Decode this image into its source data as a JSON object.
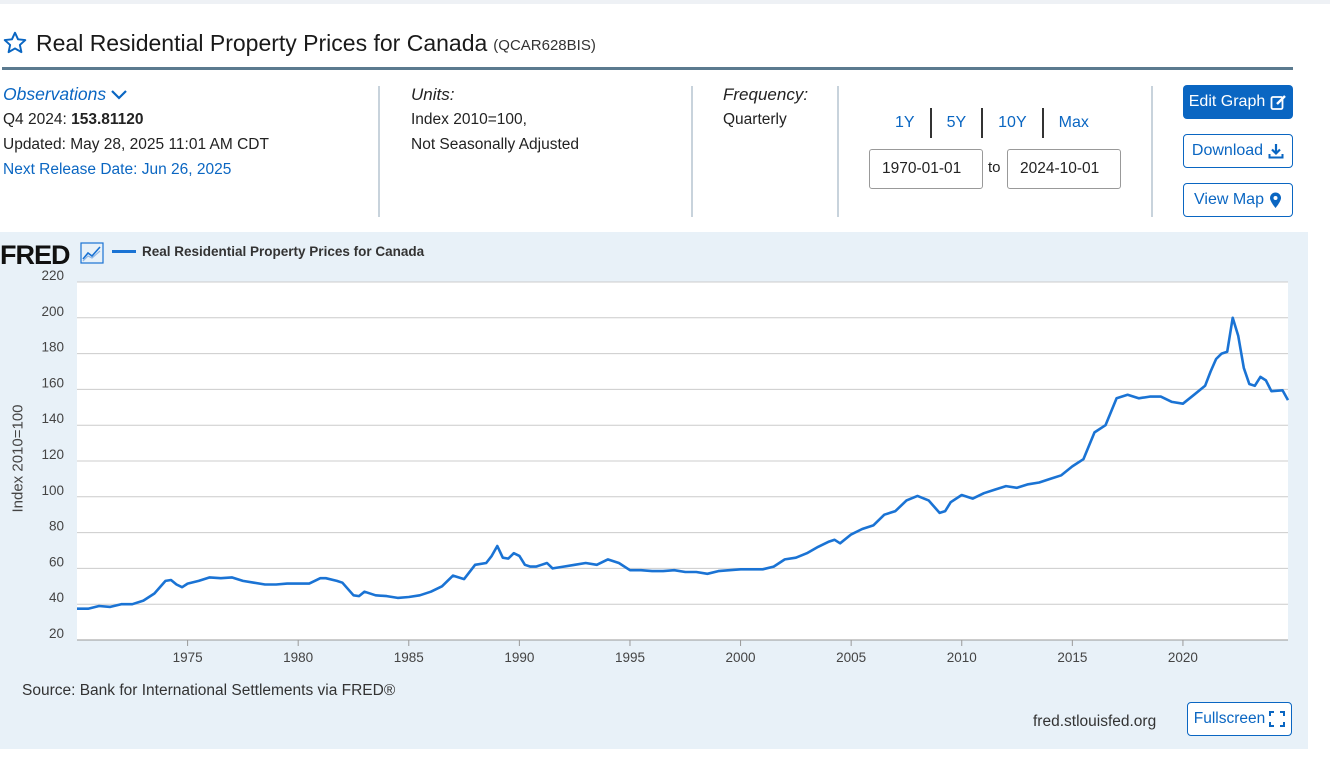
{
  "header": {
    "title": "Real Residential Property Prices for Canada",
    "series_id": "(QCAR628BIS)"
  },
  "observations": {
    "label": "Observations",
    "period": "Q4 2024:",
    "value": "153.81120",
    "updated": "Updated: May 28, 2025 11:01 AM CDT",
    "next_release": "Next Release Date: Jun 26, 2025"
  },
  "units": {
    "label": "Units:",
    "line1": "Index 2010=100,",
    "line2": "Not Seasonally Adjusted"
  },
  "frequency": {
    "label": "Frequency:",
    "value": "Quarterly"
  },
  "range": {
    "buttons": [
      "1Y",
      "5Y",
      "10Y",
      "Max"
    ],
    "start": "1970-01-01",
    "end": "2024-10-01",
    "to_label": "to"
  },
  "actions": {
    "edit": "Edit Graph",
    "download": "Download",
    "map": "View Map",
    "fullscreen": "Fullscreen"
  },
  "chart_meta": {
    "logo": "FRED",
    "source": "Source: Bank for International Settlements via FRED®",
    "url": "fred.stlouisfed.org"
  },
  "colors": {
    "accent": "#0a66c2",
    "line": "#1a73d4",
    "chart_bg": "#e8f1f8"
  },
  "chart_data": {
    "type": "line",
    "title": "",
    "legend": [
      "Real Residential Property Prices for Canada"
    ],
    "legend_position": "top-left",
    "ylabel": "Index 2010=100",
    "xlabel": "",
    "ylim": [
      20,
      220
    ],
    "yticks": [
      20,
      40,
      60,
      80,
      100,
      120,
      140,
      160,
      180,
      200,
      220
    ],
    "xlim": [
      1970,
      2024.75
    ],
    "xticks": [
      1975,
      1980,
      1985,
      1990,
      1995,
      2000,
      2005,
      2010,
      2015,
      2020
    ],
    "grid": true,
    "series": [
      {
        "name": "Real Residential Property Prices for Canada",
        "x": [
          1970,
          1970.5,
          1971,
          1971.5,
          1972,
          1972.5,
          1973,
          1973.5,
          1974,
          1974.25,
          1974.5,
          1974.75,
          1975,
          1975.5,
          1976,
          1976.5,
          1977,
          1977.5,
          1978,
          1978.5,
          1979,
          1979.5,
          1980,
          1980.5,
          1981,
          1981.25,
          1981.75,
          1982,
          1982.5,
          1982.75,
          1983,
          1983.5,
          1984,
          1984.5,
          1985,
          1985.5,
          1986,
          1986.5,
          1987,
          1987.5,
          1988,
          1988.5,
          1988.75,
          1989,
          1989.25,
          1989.5,
          1989.75,
          1990,
          1990.25,
          1990.5,
          1990.75,
          1991,
          1991.25,
          1991.5,
          1992,
          1992.5,
          1993,
          1993.5,
          1994,
          1994.5,
          1995,
          1995.5,
          1996,
          1996.5,
          1997,
          1997.5,
          1998,
          1998.5,
          1999,
          1999.5,
          2000,
          2000.5,
          2001,
          2001.5,
          2002,
          2002.5,
          2003,
          2003.5,
          2004,
          2004.25,
          2004.5,
          2005,
          2005.5,
          2006,
          2006.5,
          2007,
          2007.5,
          2008,
          2008.5,
          2009,
          2009.25,
          2009.5,
          2010,
          2010.5,
          2011,
          2011.5,
          2012,
          2012.5,
          2013,
          2013.5,
          2014,
          2014.5,
          2015,
          2015.5,
          2016,
          2016.5,
          2017,
          2017.5,
          2018,
          2018.5,
          2019,
          2019.5,
          2020,
          2020.5,
          2021,
          2021.25,
          2021.5,
          2021.75,
          2022,
          2022.25,
          2022.5,
          2022.75,
          2023,
          2023.25,
          2023.5,
          2023.75,
          2024,
          2024.5,
          2024.75
        ],
        "y": [
          37.5,
          37.5,
          39,
          38.5,
          40,
          40,
          42,
          46,
          53,
          53.5,
          51,
          49.5,
          51.5,
          53,
          55,
          54.5,
          55,
          53,
          52,
          51,
          51,
          51.5,
          51.5,
          51.5,
          54.5,
          54.5,
          53,
          52,
          45,
          44.5,
          47,
          45,
          44.5,
          43.5,
          44,
          45,
          47,
          50,
          56,
          54,
          62,
          63,
          67,
          72.5,
          66,
          65.5,
          68.5,
          67,
          62,
          61,
          61,
          62,
          63,
          60,
          61,
          62,
          63,
          62,
          65,
          63,
          59,
          59,
          58.5,
          58.5,
          59,
          58,
          58,
          57,
          58.5,
          59,
          59.5,
          59.5,
          59.5,
          61,
          65,
          66,
          68.5,
          72,
          75,
          76,
          74,
          79,
          82,
          84,
          90,
          92,
          98,
          100.5,
          98,
          91,
          92,
          97,
          101,
          99,
          102,
          104,
          106,
          105,
          107,
          108,
          110,
          112,
          117,
          121,
          136,
          140,
          155,
          157,
          155,
          156,
          156,
          153,
          152,
          157,
          162,
          170,
          177,
          180,
          181,
          200,
          190,
          172,
          163,
          162,
          167,
          165,
          159,
          159.5,
          154
        ]
      }
    ]
  }
}
